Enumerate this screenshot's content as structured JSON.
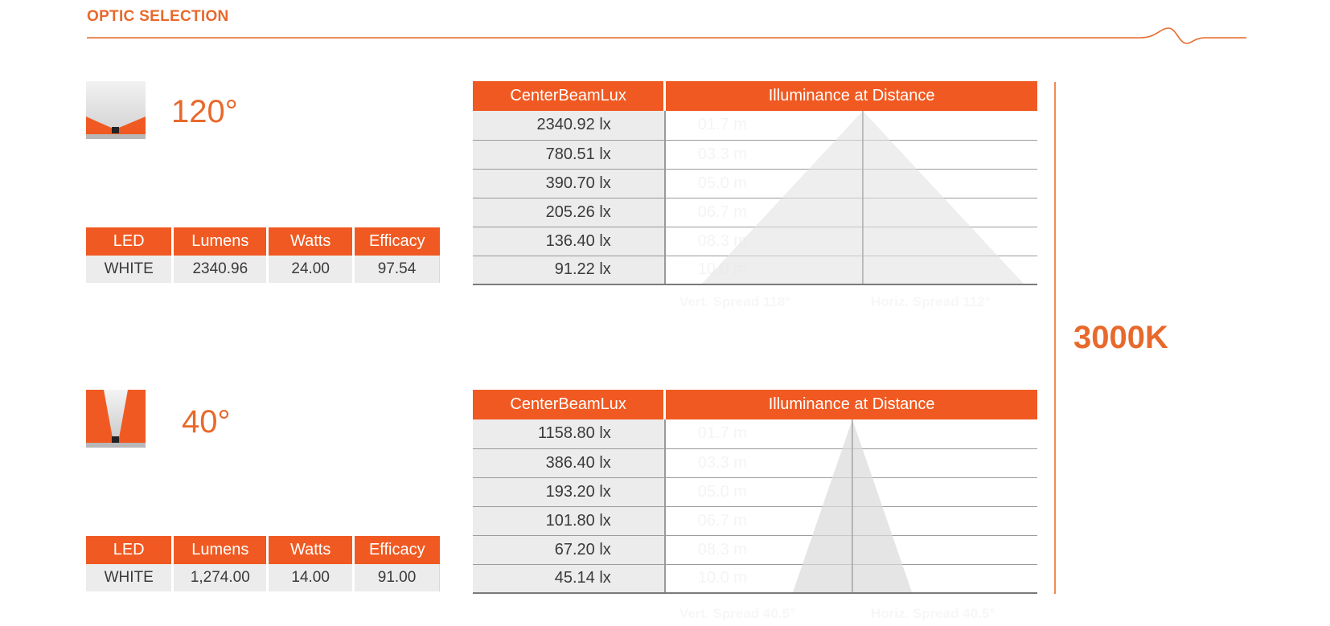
{
  "header": {
    "title": "OPTIC SELECTION"
  },
  "cct": "3000K",
  "colors": {
    "accent": "#f05a22",
    "text_orange": "#e8692c",
    "cell_bg": "#ececec"
  },
  "optics": [
    {
      "angle": "120°",
      "icon": "wide-beam-120-icon",
      "spec_headers": [
        "LED",
        "Lumens",
        "Watts",
        "Efficacy"
      ],
      "spec_row": [
        "WHITE",
        "2340.96",
        "24.00",
        "97.54"
      ],
      "lux_headers": [
        "CenterBeamLux",
        "Illuminance at Distance"
      ],
      "lux_rows": [
        {
          "lux": "2340.92 lx",
          "dist": "01.7 m"
        },
        {
          "lux": "780.51 lx",
          "dist": "03.3 m"
        },
        {
          "lux": "390.70 lx",
          "dist": "05.0 m"
        },
        {
          "lux": "205.26 lx",
          "dist": "06.7 m"
        },
        {
          "lux": "136.40 lx",
          "dist": "08.3 m"
        },
        {
          "lux": "91.22 lx",
          "dist": "10.0 m"
        }
      ],
      "captions": [
        "Vert. Spread 118°",
        "Horiz. Spread 112°"
      ]
    },
    {
      "angle": "40°",
      "icon": "narrow-beam-40-icon",
      "spec_headers": [
        "LED",
        "Lumens",
        "Watts",
        "Efficacy"
      ],
      "spec_row": [
        "WHITE",
        "1,274.00",
        "14.00",
        "91.00"
      ],
      "lux_headers": [
        "CenterBeamLux",
        "Illuminance at Distance"
      ],
      "lux_rows": [
        {
          "lux": "1158.80 lx",
          "dist": "01.7 m"
        },
        {
          "lux": "386.40 lx",
          "dist": "03.3 m"
        },
        {
          "lux": "193.20 lx",
          "dist": "05.0 m"
        },
        {
          "lux": "101.80 lx",
          "dist": "06.7 m"
        },
        {
          "lux": "67.20 lx",
          "dist": "08.3 m"
        },
        {
          "lux": "45.14 lx",
          "dist": "10.0 m"
        }
      ],
      "captions": [
        "Vert. Spread 40.5°",
        "Horiz. Spread 40.5°"
      ]
    }
  ]
}
